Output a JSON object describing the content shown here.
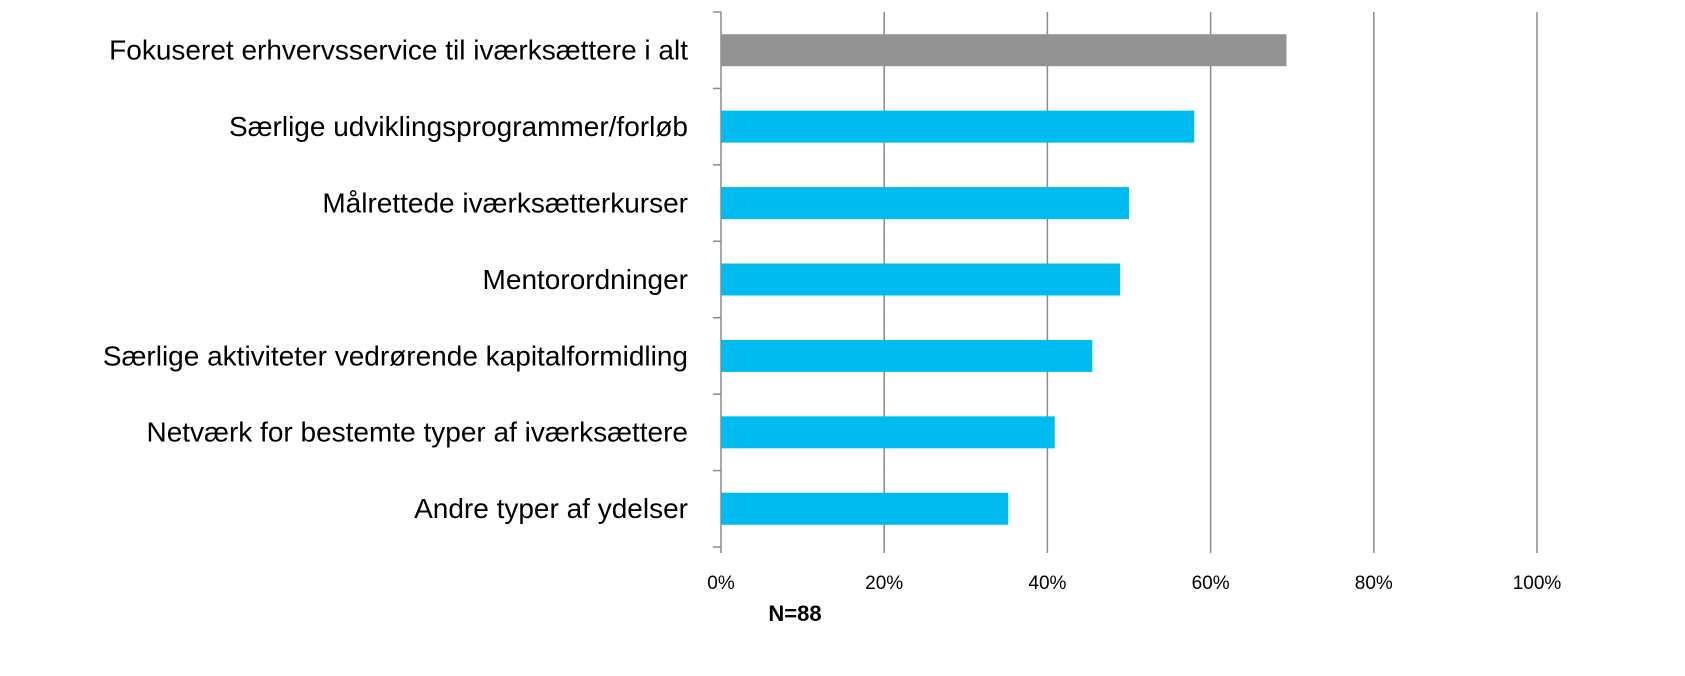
{
  "chart_data": {
    "type": "bar",
    "orientation": "horizontal",
    "categories": [
      "Fokuseret erhvervsservice til iværksættere i alt",
      "Særlige udviklingsprogrammer/forløb",
      "Målrettede iværksætterkurser ",
      "Mentorordninger",
      "Særlige aktiviteter vedrørende kapitalformidling",
      "Netværk for bestemte typer af iværksættere",
      "Andre typer af ydelser"
    ],
    "values": [
      69.3,
      58,
      50,
      48.9,
      45.5,
      40.9,
      35.2
    ],
    "colors": [
      "#939393",
      "#00bbf0",
      "#00bbf0",
      "#00bbf0",
      "#00bbf0",
      "#00bbf0",
      "#00bbf0"
    ],
    "xlim": [
      0,
      100
    ],
    "xticks": [
      {
        "value": 0,
        "label": "0%"
      },
      {
        "value": 20,
        "label": "20%"
      },
      {
        "value": 40,
        "label": "40%"
      },
      {
        "value": 60,
        "label": "60%"
      },
      {
        "value": 80,
        "label": "80%"
      },
      {
        "value": 100,
        "label": "100%"
      }
    ],
    "grid": true,
    "annotation": "N=88"
  }
}
